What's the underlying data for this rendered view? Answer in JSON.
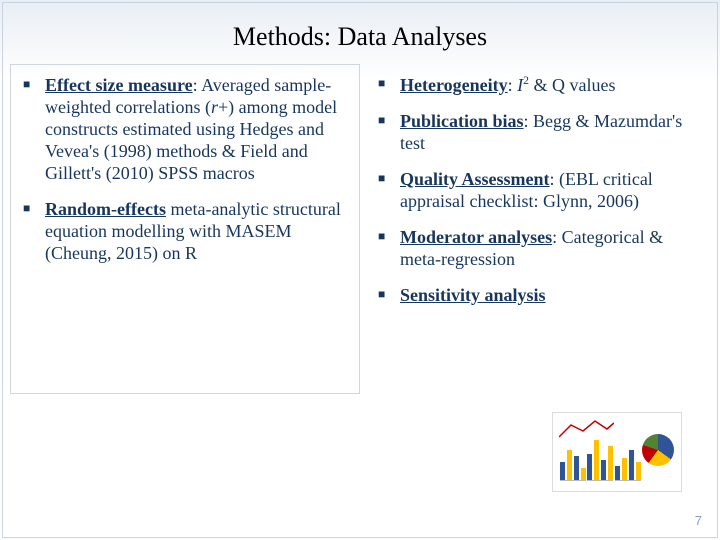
{
  "slide": {
    "title": "Methods: Data Analyses",
    "page_number": "7",
    "text_color": "#17365d",
    "background_gradient_top": "#e8eef5",
    "background_gradient_bottom": "#ffffff",
    "title_fontsize": 26,
    "body_fontsize": 18
  },
  "left_column": {
    "items": [
      {
        "lead_underlined": "Effect size measure",
        "rest": ": Averaged sample-weighted correlations (",
        "ital": "r",
        "after_ital": "+) among model constructs estimated using Hedges and Vevea's (1998) methods & Field and Gillett's (2010) SPSS macros"
      },
      {
        "lead_underlined": "Random-effects",
        "rest": " meta-analytic structural equation modelling with MASEM (Cheung, 2015) on R"
      }
    ]
  },
  "right_column": {
    "items": [
      {
        "lead_underlined": "Heterogeneity",
        "rest_pre": ": ",
        "ital": "I",
        "sup": "2",
        "rest_post": " & Q values"
      },
      {
        "lead_underlined": "Publication bias",
        "rest": ": Begg & Mazumdar's test"
      },
      {
        "lead_underlined": "Quality Assessment",
        "rest": ": (EBL critical appraisal checklist: Glynn, 2006)"
      },
      {
        "lead_underlined": "Moderator analyses",
        "rest": ": Categorical & meta-regression"
      },
      {
        "lead_underlined": "Sensitivity analysis",
        "rest": ""
      }
    ]
  },
  "chart_thumb": {
    "type": "infographic",
    "background_color": "#ffffff",
    "border_color": "#dcdcdc",
    "bar_groups": [
      {
        "heights": [
          18,
          30,
          24,
          12
        ],
        "colors": [
          "#2f5597",
          "#ffc000",
          "#2f5597",
          "#ffc000"
        ]
      },
      {
        "heights": [
          26,
          40,
          20,
          34
        ],
        "colors": [
          "#2f5597",
          "#ffc000",
          "#2f5597",
          "#ffc000"
        ]
      },
      {
        "heights": [
          14,
          22,
          30,
          18
        ],
        "colors": [
          "#2f5597",
          "#ffc000",
          "#2f5597",
          "#ffc000"
        ]
      }
    ],
    "pie": {
      "slices": [
        {
          "color": "#2f5597",
          "pct": 35
        },
        {
          "color": "#ffc000",
          "pct": 25
        },
        {
          "color": "#c00000",
          "pct": 20
        },
        {
          "color": "#548235",
          "pct": 20
        }
      ]
    },
    "line": {
      "color": "#c00000",
      "points": [
        [
          0,
          20
        ],
        [
          12,
          8
        ],
        [
          24,
          14
        ],
        [
          36,
          4
        ],
        [
          48,
          12
        ],
        [
          55,
          6
        ]
      ]
    }
  }
}
